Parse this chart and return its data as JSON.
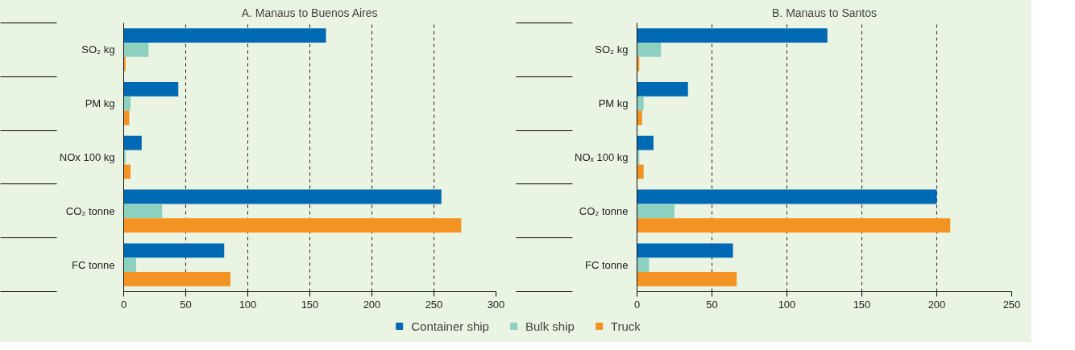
{
  "chart_data": [
    {
      "type": "bar",
      "orientation": "horizontal",
      "title": "A. Manaus to Buenos Aires",
      "categories": [
        "SO₂ kg",
        "PM kg",
        "NOx 100 kg",
        "CO₂ tonne",
        "FC tonne"
      ],
      "series": [
        {
          "name": "Container ship",
          "color": "#0069b4",
          "values": [
            163,
            44,
            14.5,
            256,
            81
          ]
        },
        {
          "name": "Bulk ship",
          "color": "#8ed0c0",
          "values": [
            20,
            5.5,
            1.5,
            31,
            10
          ]
        },
        {
          "name": "Truck",
          "color": "#f39323",
          "values": [
            1.5,
            4.5,
            5.5,
            272,
            86
          ]
        }
      ],
      "xlim": [
        0,
        300
      ],
      "xticks": [
        0,
        50,
        100,
        150,
        200,
        250,
        300
      ],
      "grid": "x",
      "legend": "bottom"
    },
    {
      "type": "bar",
      "orientation": "horizontal",
      "title": "B. Manaus to Santos",
      "categories": [
        "SO₂ kg",
        "PM kg",
        "NOₓ 100 kg",
        "CO₂ tonne",
        "FC tonne"
      ],
      "series": [
        {
          "color": "#0069b4",
          "values": [
            127,
            34,
            11,
            200,
            64
          ]
        },
        {
          "color": "#8ed0c0",
          "values": [
            16,
            4.4,
            1.5,
            25,
            8
          ]
        },
        {
          "color": "#f39323",
          "values": [
            1.5,
            3.4,
            4.4,
            209,
            66.5
          ]
        }
      ],
      "xlim": [
        0,
        250
      ],
      "xticks": [
        0,
        50,
        100,
        150,
        200,
        250
      ],
      "grid": "x"
    }
  ]
}
